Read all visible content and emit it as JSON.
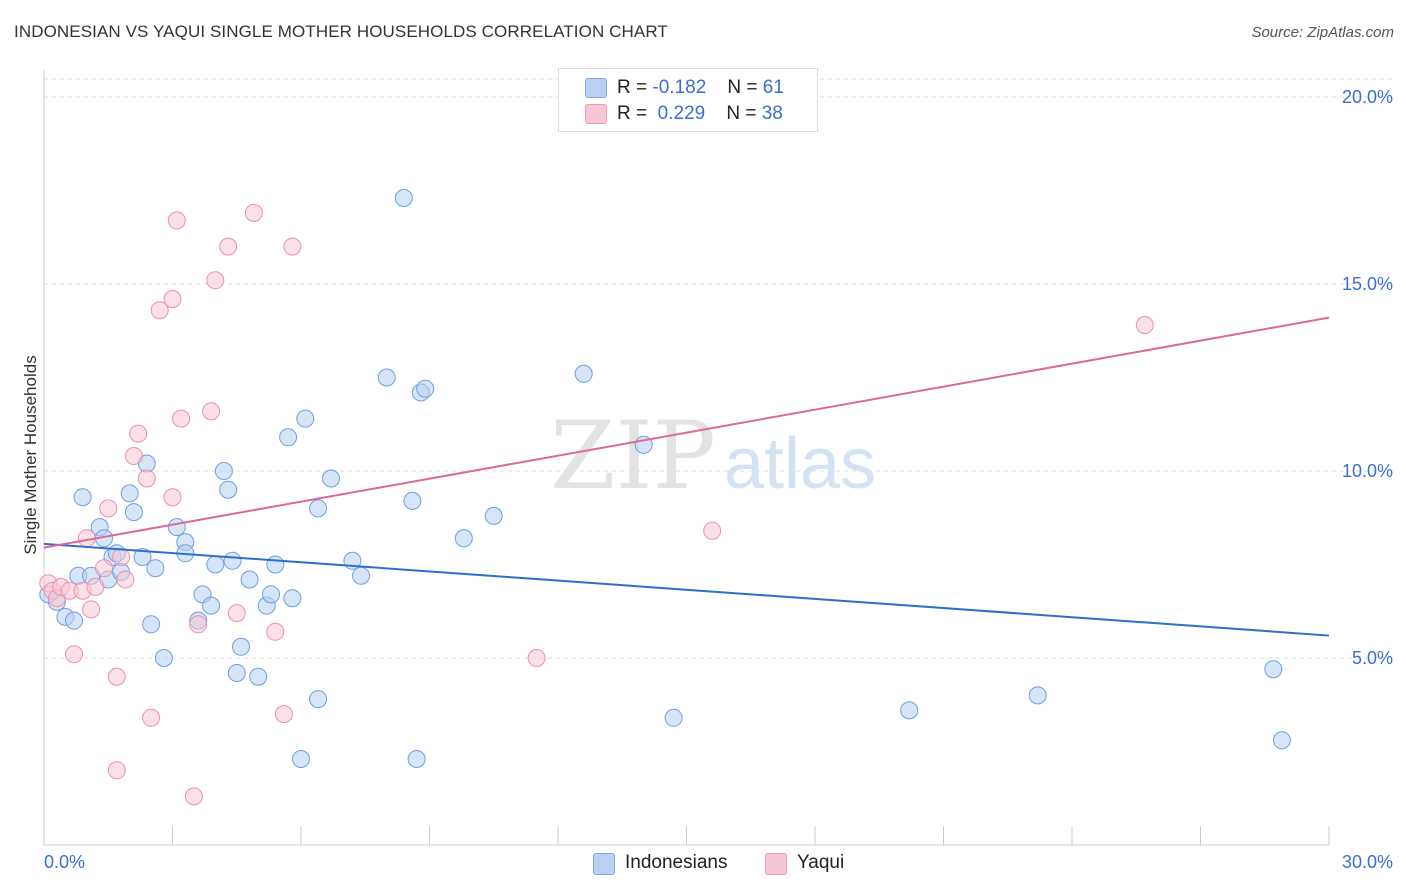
{
  "header": {
    "title": "INDONESIAN VS YAQUI SINGLE MOTHER HOUSEHOLDS CORRELATION CHART",
    "source": "Source: ZipAtlas.com"
  },
  "legend": {
    "rows": [
      {
        "r_label": "R =",
        "r_value": "-0.182",
        "n_label": "N =",
        "n_value": "61",
        "color": "#a8c6f0"
      },
      {
        "r_label": "R =",
        "r_value": "0.229",
        "n_label": "N =",
        "n_value": "38",
        "color": "#f5b8cb"
      }
    ]
  },
  "bottom_legend": [
    {
      "label": "Indonesians",
      "color": "#a8c6f0"
    },
    {
      "label": "Yaqui",
      "color": "#f5b8cb"
    }
  ],
  "watermark": {
    "zip": "ZIP",
    "atlas": "atlas"
  },
  "chart_data": {
    "type": "scatter",
    "title": "INDONESIAN VS YAQUI SINGLE MOTHER HOUSEHOLDS CORRELATION CHART",
    "xlabel": "",
    "ylabel": "Single Mother Households",
    "xlim": [
      0,
      30
    ],
    "ylim": [
      0,
      20.5
    ],
    "x_tick_labels": [
      {
        "value": 0,
        "label": "0.0%"
      },
      {
        "value": 30,
        "label": "30.0%"
      }
    ],
    "y_tick_labels": [
      {
        "value": 5,
        "label": "5.0%"
      },
      {
        "value": 10,
        "label": "10.0%"
      },
      {
        "value": 15,
        "label": "15.0%"
      },
      {
        "value": 20,
        "label": "20.0%"
      }
    ],
    "grid": true,
    "series": [
      {
        "name": "Indonesians",
        "color": "#6f9fe0",
        "fill": "#b7d0f3",
        "line_color": "#2f6fcc",
        "trend": {
          "x": [
            0,
            30
          ],
          "y": [
            8.05,
            5.6
          ]
        },
        "points": [
          [
            0.1,
            6.7
          ],
          [
            0.3,
            6.5
          ],
          [
            0.5,
            6.1
          ],
          [
            0.7,
            6.0
          ],
          [
            0.8,
            7.2
          ],
          [
            0.9,
            9.3
          ],
          [
            1.1,
            7.2
          ],
          [
            1.3,
            8.5
          ],
          [
            1.4,
            8.2
          ],
          [
            1.5,
            7.1
          ],
          [
            1.6,
            7.7
          ],
          [
            1.7,
            7.8
          ],
          [
            1.8,
            7.3
          ],
          [
            2.0,
            9.4
          ],
          [
            2.1,
            8.9
          ],
          [
            2.3,
            7.7
          ],
          [
            2.4,
            10.2
          ],
          [
            2.5,
            5.9
          ],
          [
            2.6,
            7.4
          ],
          [
            2.8,
            5.0
          ],
          [
            3.1,
            8.5
          ],
          [
            3.3,
            8.1
          ],
          [
            3.3,
            7.8
          ],
          [
            3.6,
            6.0
          ],
          [
            3.7,
            6.7
          ],
          [
            3.9,
            6.4
          ],
          [
            4.0,
            7.5
          ],
          [
            4.2,
            10.0
          ],
          [
            4.3,
            9.5
          ],
          [
            4.4,
            7.6
          ],
          [
            4.5,
            4.6
          ],
          [
            4.6,
            5.3
          ],
          [
            4.8,
            7.1
          ],
          [
            5.0,
            4.5
          ],
          [
            5.2,
            6.4
          ],
          [
            5.3,
            6.7
          ],
          [
            5.4,
            7.5
          ],
          [
            5.7,
            10.9
          ],
          [
            5.8,
            6.6
          ],
          [
            6.0,
            2.3
          ],
          [
            6.1,
            11.4
          ],
          [
            6.4,
            9.0
          ],
          [
            6.4,
            3.9
          ],
          [
            6.7,
            9.8
          ],
          [
            7.2,
            7.6
          ],
          [
            7.4,
            7.2
          ],
          [
            8.0,
            12.5
          ],
          [
            8.4,
            17.3
          ],
          [
            8.6,
            9.2
          ],
          [
            8.7,
            2.3
          ],
          [
            8.8,
            12.1
          ],
          [
            8.9,
            12.2
          ],
          [
            9.8,
            8.2
          ],
          [
            10.5,
            8.8
          ],
          [
            12.6,
            12.6
          ],
          [
            14.0,
            10.7
          ],
          [
            14.7,
            3.4
          ],
          [
            20.2,
            3.6
          ],
          [
            23.2,
            4.0
          ],
          [
            28.7,
            4.7
          ],
          [
            28.9,
            2.8
          ]
        ]
      },
      {
        "name": "Yaqui",
        "color": "#ee8fac",
        "fill": "#f7c6d4",
        "line_color": "#e06892",
        "trend": {
          "x": [
            0,
            30
          ],
          "y": [
            7.95,
            14.1
          ]
        },
        "points": [
          [
            0.1,
            7.0
          ],
          [
            0.2,
            6.8
          ],
          [
            0.3,
            6.6
          ],
          [
            0.4,
            6.9
          ],
          [
            0.6,
            6.8
          ],
          [
            0.7,
            5.1
          ],
          [
            0.9,
            6.8
          ],
          [
            1.0,
            8.2
          ],
          [
            1.1,
            6.3
          ],
          [
            1.2,
            6.9
          ],
          [
            1.4,
            7.4
          ],
          [
            1.5,
            9.0
          ],
          [
            1.7,
            4.5
          ],
          [
            1.7,
            2.0
          ],
          [
            1.8,
            7.7
          ],
          [
            1.9,
            7.1
          ],
          [
            2.1,
            10.4
          ],
          [
            2.2,
            11.0
          ],
          [
            2.4,
            9.8
          ],
          [
            2.5,
            3.4
          ],
          [
            2.7,
            14.3
          ],
          [
            3.0,
            14.6
          ],
          [
            3.0,
            9.3
          ],
          [
            3.1,
            16.7
          ],
          [
            3.2,
            11.4
          ],
          [
            3.5,
            1.3
          ],
          [
            3.6,
            5.9
          ],
          [
            3.9,
            11.6
          ],
          [
            4.0,
            15.1
          ],
          [
            4.3,
            16.0
          ],
          [
            4.5,
            6.2
          ],
          [
            4.9,
            16.9
          ],
          [
            5.4,
            5.7
          ],
          [
            5.6,
            3.5
          ],
          [
            5.8,
            16.0
          ],
          [
            11.5,
            5.0
          ],
          [
            15.6,
            8.4
          ],
          [
            25.7,
            13.9
          ]
        ]
      }
    ]
  }
}
